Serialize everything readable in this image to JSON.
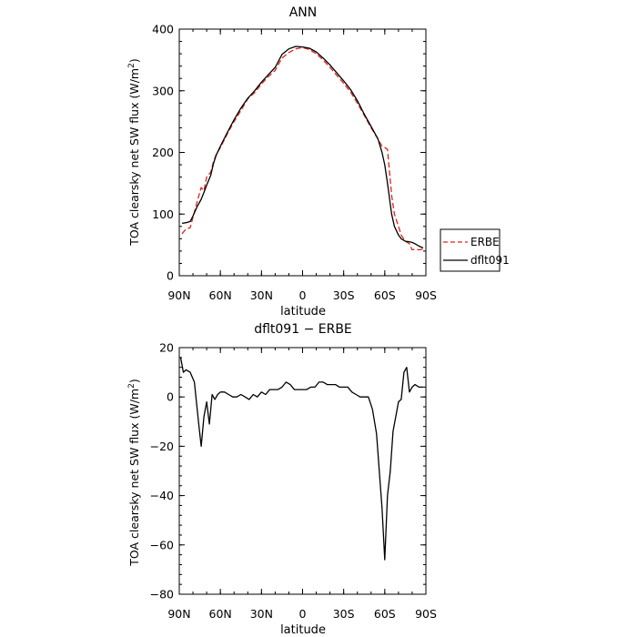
{
  "chart_data": [
    {
      "type": "line",
      "title": "ANN",
      "xlabel": "latitude",
      "ylabel": "TOA clearsky net SW flux (W/m",
      "ylabel_sup": "2",
      "ylabel_close": ")",
      "xlim": [
        90,
        -90
      ],
      "ylim": [
        0,
        400
      ],
      "xticks": [
        90,
        60,
        30,
        0,
        -30,
        -60,
        -90
      ],
      "xtick_labels": [
        "90N",
        "60N",
        "30N",
        "0",
        "30S",
        "60S",
        "90S"
      ],
      "yticks": [
        0,
        100,
        200,
        300,
        400
      ],
      "ytick_labels": [
        "0",
        "100",
        "200",
        "300",
        "400"
      ],
      "legend_position": "outside-right",
      "series": [
        {
          "name": "ERBE",
          "color": "#e0201c",
          "dash": "dashed",
          "x": [
            88,
            85,
            82,
            80,
            77,
            74,
            72,
            70,
            67,
            65,
            63,
            60,
            55,
            50,
            45,
            40,
            35,
            30,
            25,
            20,
            15,
            10,
            5,
            0,
            -5,
            -10,
            -15,
            -20,
            -25,
            -30,
            -35,
            -40,
            -45,
            -50,
            -55,
            -58,
            -60,
            -62,
            -65,
            -67,
            -70,
            -72,
            -75,
            -78,
            -80,
            -82,
            -85,
            -88
          ],
          "values": [
            68,
            76,
            78,
            95,
            120,
            143,
            138,
            160,
            168,
            185,
            197,
            208,
            230,
            250,
            268,
            287,
            297,
            311,
            323,
            333,
            353,
            362,
            368,
            370,
            367,
            360,
            350,
            338,
            325,
            312,
            298,
            280,
            260,
            240,
            222,
            210,
            208,
            205,
            130,
            100,
            80,
            66,
            56,
            52,
            42,
            43,
            42,
            43
          ]
        },
        {
          "name": "dflt091",
          "color": "#000000",
          "dash": "solid",
          "x": [
            88,
            85,
            82,
            80,
            77,
            74,
            72,
            70,
            67,
            65,
            63,
            60,
            55,
            50,
            45,
            40,
            35,
            30,
            25,
            20,
            15,
            10,
            5,
            0,
            -5,
            -10,
            -15,
            -20,
            -25,
            -30,
            -35,
            -40,
            -45,
            -50,
            -55,
            -58,
            -60,
            -62,
            -65,
            -67,
            -70,
            -72,
            -75,
            -78,
            -80,
            -82,
            -85,
            -88
          ],
          "values": [
            85,
            86,
            88,
            97,
            112,
            124,
            135,
            147,
            163,
            182,
            196,
            210,
            232,
            253,
            272,
            288,
            300,
            314,
            326,
            338,
            359,
            368,
            372,
            371,
            369,
            363,
            353,
            342,
            329,
            316,
            302,
            284,
            262,
            242,
            222,
            200,
            180,
            150,
            100,
            80,
            66,
            60,
            56,
            55,
            54,
            52,
            48,
            45
          ]
        }
      ]
    },
    {
      "type": "line",
      "title": "dflt091 − ERBE",
      "xlabel": "latitude",
      "ylabel": "TOA clearsky net SW flux (W/m",
      "ylabel_sup": "2",
      "ylabel_close": ")",
      "xlim": [
        90,
        -90
      ],
      "ylim": [
        -80,
        20
      ],
      "xticks": [
        90,
        60,
        30,
        0,
        -30,
        -60,
        -90
      ],
      "xtick_labels": [
        "90N",
        "60N",
        "30N",
        "0",
        "30S",
        "60S",
        "90S"
      ],
      "yticks": [
        -80,
        -60,
        -40,
        -20,
        0,
        20
      ],
      "ytick_labels": [
        "−80",
        "−60",
        "−40",
        "−20",
        "0",
        "20"
      ],
      "series": [
        {
          "name": "",
          "color": "#000000",
          "dash": "solid",
          "x": [
            89,
            87,
            85,
            82,
            79,
            76,
            74,
            72,
            70,
            68,
            66,
            64,
            62,
            60,
            57,
            54,
            51,
            48,
            45,
            42,
            39,
            36,
            33,
            30,
            27,
            24,
            21,
            18,
            15,
            12,
            9,
            6,
            3,
            0,
            -3,
            -6,
            -9,
            -12,
            -15,
            -18,
            -21,
            -24,
            -27,
            -30,
            -33,
            -36,
            -39,
            -42,
            -45,
            -48,
            -51,
            -54,
            -56,
            -58,
            -60,
            -62,
            -64,
            -66,
            -68,
            -70,
            -72,
            -74,
            -76,
            -78,
            -80,
            -82,
            -85,
            -88
          ],
          "values": [
            16,
            10,
            11,
            10,
            6,
            -10,
            -20,
            -8,
            -2,
            -11,
            1,
            -1,
            1,
            2,
            2,
            1,
            0,
            0,
            1,
            0,
            -1,
            1,
            0,
            2,
            1,
            3,
            3,
            3,
            4,
            6,
            5,
            3,
            3,
            3,
            3,
            4,
            4,
            6,
            6,
            5,
            5,
            5,
            4,
            4,
            4,
            2,
            1,
            0,
            0,
            0,
            -5,
            -15,
            -30,
            -45,
            -66,
            -40,
            -30,
            -14,
            -8,
            -2,
            -1,
            10,
            12,
            2,
            4,
            5,
            4,
            4
          ]
        }
      ]
    }
  ]
}
